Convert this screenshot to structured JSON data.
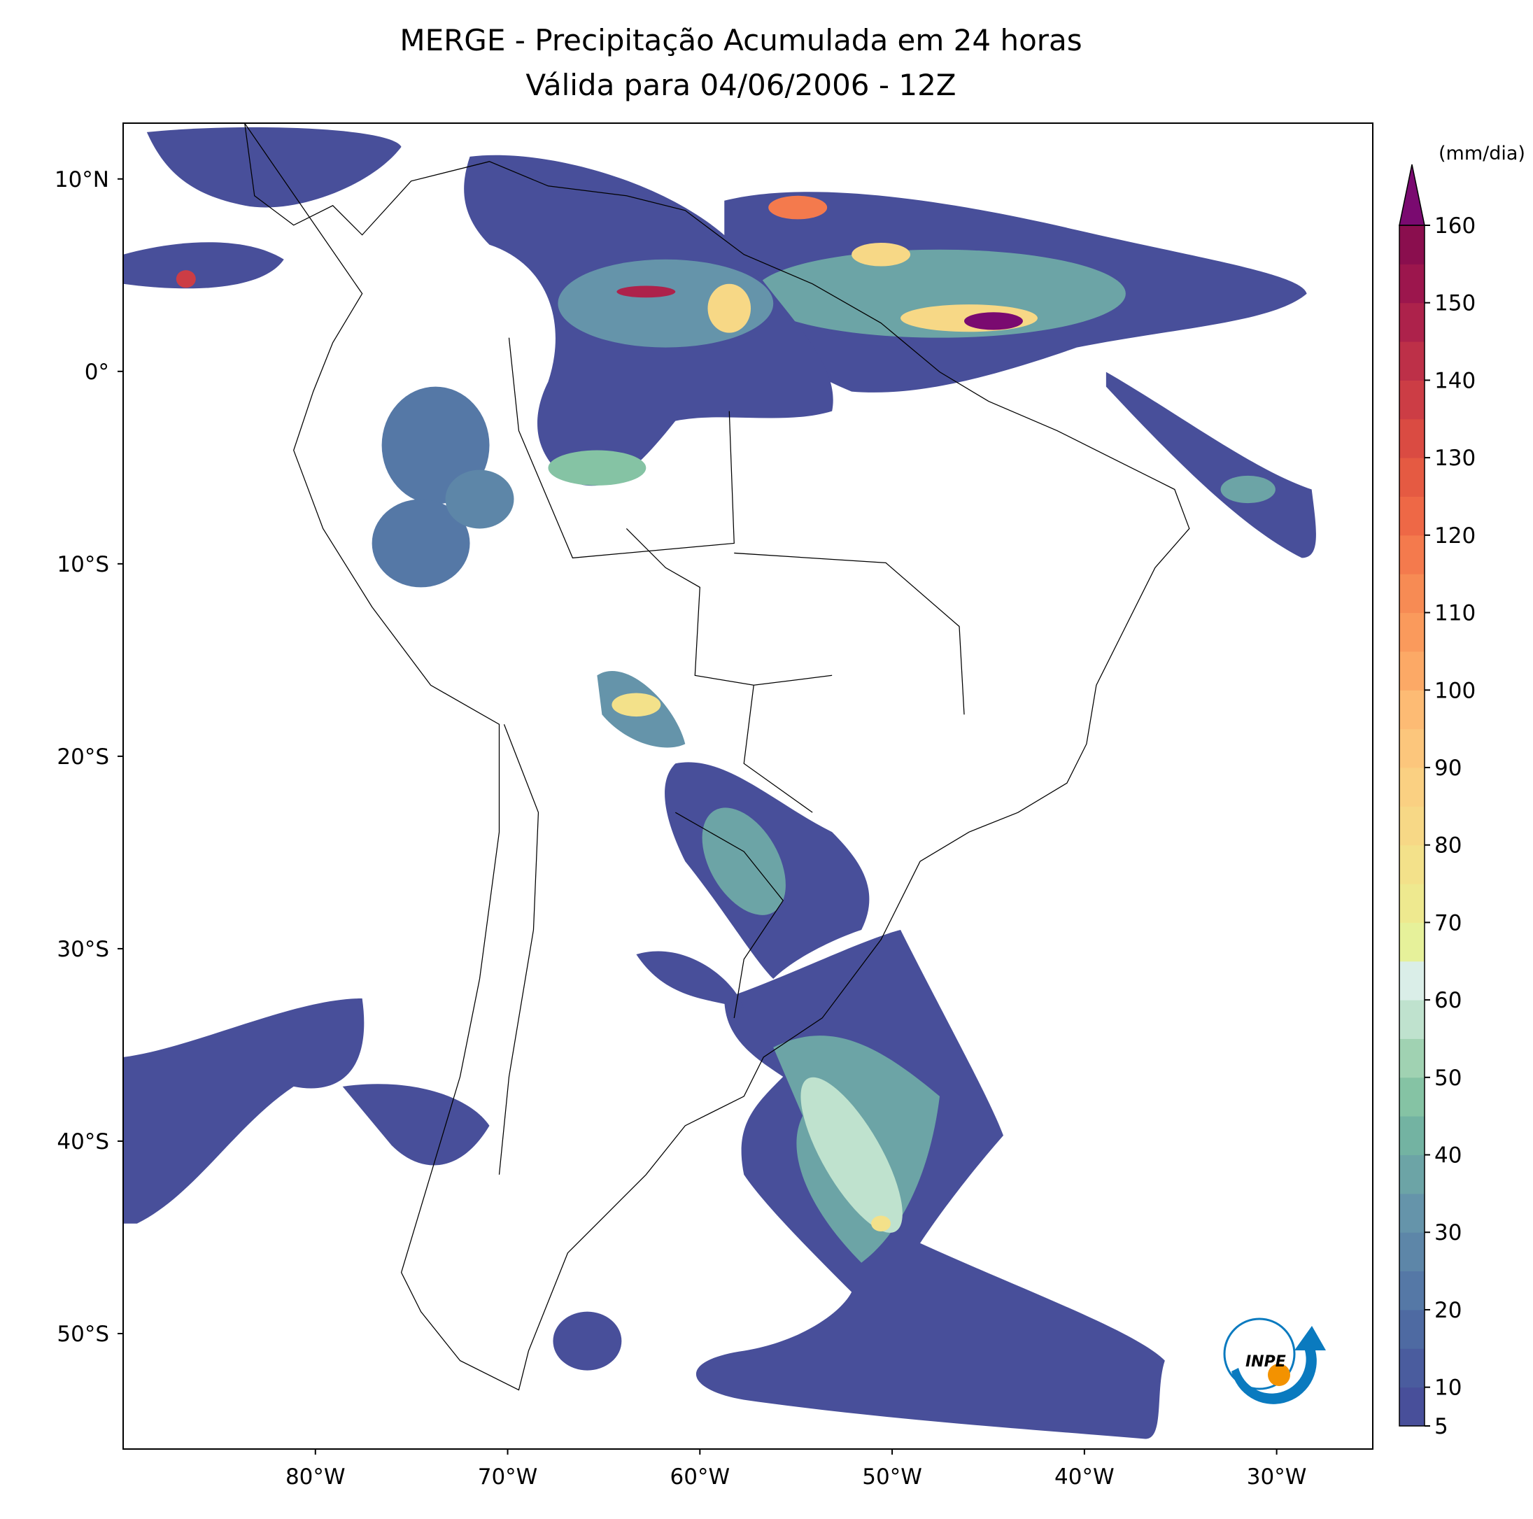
{
  "map": {
    "title": [
      "MERGE - Precipitação Acumulada em 24 horas",
      "Válida para 04/06/2006 - 12Z"
    ],
    "xlim": [
      -90,
      -25
    ],
    "ylim": [
      -56,
      12.9
    ],
    "xticks": [
      {
        "value": -80,
        "label": "80°W"
      },
      {
        "value": -70,
        "label": "70°W"
      },
      {
        "value": -60,
        "label": "60°W"
      },
      {
        "value": -50,
        "label": "50°W"
      },
      {
        "value": -40,
        "label": "40°W"
      },
      {
        "value": -30,
        "label": "30°W"
      }
    ],
    "yticks": [
      {
        "value": 10,
        "label": "10°N"
      },
      {
        "value": 0,
        "label": "0°"
      },
      {
        "value": -10,
        "label": "10°S"
      },
      {
        "value": -20,
        "label": "20°S"
      },
      {
        "value": -30,
        "label": "30°S"
      },
      {
        "value": -40,
        "label": "40°S"
      },
      {
        "value": -50,
        "label": "50°S"
      }
    ]
  },
  "colorbar": {
    "label": "(mm/dia)",
    "lim": [
      5,
      160
    ],
    "ticks": [
      5,
      10,
      20,
      30,
      40,
      50,
      60,
      70,
      80,
      90,
      100,
      110,
      120,
      130,
      140,
      150,
      160
    ],
    "colors": [
      "#484f9a",
      "#4a5c9e",
      "#4e6aa2",
      "#5578a6",
      "#5d86a8",
      "#6594aa",
      "#6ca4a6",
      "#73b3a2",
      "#85c3a4",
      "#a0d2b2",
      "#bfe2ce",
      "#daeee8",
      "#e6f19a",
      "#eee98f",
      "#f3e18a",
      "#f7d886",
      "#fad082",
      "#fcc67c",
      "#fdbb74",
      "#fca966",
      "#fa9a5c",
      "#f78b54",
      "#f47a4d",
      "#ee6846",
      "#e55a42",
      "#da4b42",
      "#cc3d45",
      "#bd3048",
      "#ad224b",
      "#9c164d",
      "#8a0e4e"
    ],
    "extend_color": "#7a0a70"
  },
  "logo": "INPE"
}
